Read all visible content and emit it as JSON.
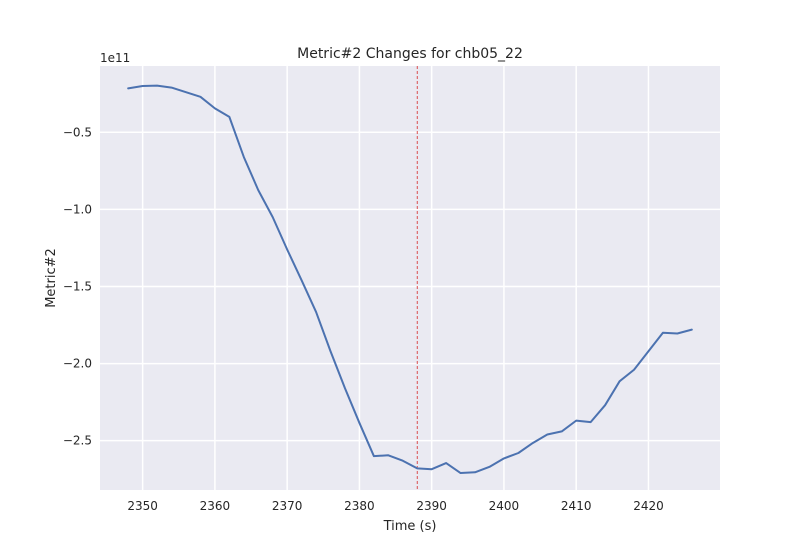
{
  "chart_data": {
    "type": "line",
    "title": "Metric#2 Changes for chb05_22",
    "xlabel": "Time (s)",
    "ylabel": "Metric#2",
    "y_scale_label": "1e11",
    "xlim": [
      2344.1,
      2429.9
    ],
    "ylim": [
      -282000000000.0,
      -7000000000.0
    ],
    "x_ticks": [
      2350,
      2360,
      2370,
      2380,
      2390,
      2400,
      2410,
      2420
    ],
    "x_tick_labels": [
      "2350",
      "2360",
      "2370",
      "2380",
      "2390",
      "2400",
      "2410",
      "2420"
    ],
    "y_ticks": [
      -50000000000.0,
      -100000000000.0,
      -150000000000.0,
      -200000000000.0,
      -250000000000.0
    ],
    "y_tick_labels": [
      "−0.5",
      "−1.0",
      "−1.5",
      "−2.0",
      "−2.5"
    ],
    "grid": true,
    "series": [
      {
        "color": "#4c72b0",
        "x": [
          2348,
          2350,
          2352,
          2354,
          2356,
          2358,
          2360,
          2362,
          2364,
          2366,
          2368,
          2370,
          2372,
          2374,
          2376,
          2378,
          2380,
          2382,
          2384,
          2386,
          2388,
          2390,
          2392,
          2394,
          2396,
          2398,
          2400,
          2402,
          2404,
          2406,
          2408,
          2410,
          2412,
          2414,
          2416,
          2418,
          2420,
          2422,
          2424,
          2426
        ],
        "y": [
          -21500000000.0,
          -20000000000.0,
          -19700000000.0,
          -21000000000.0,
          -24000000000.0,
          -27000000000.0,
          -34500000000.0,
          -40000000000.0,
          -66000000000.0,
          -87500000000.0,
          -105000000000.0,
          -126000000000.0,
          -146000000000.0,
          -166500000000.0,
          -192000000000.0,
          -216000000000.0,
          -238500000000.0,
          -260000000000.0,
          -259500000000.0,
          -263000000000.0,
          -268000000000.0,
          -268500000000.0,
          -264500000000.0,
          -271000000000.0,
          -270500000000.0,
          -267000000000.0,
          -261500000000.0,
          -258000000000.0,
          -251500000000.0,
          -246000000000.0,
          -244000000000.0,
          -237000000000.0,
          -238000000000.0,
          -227000000000.0,
          -211500000000.0,
          -204000000000.0,
          -192000000000.0,
          -180000000000.0,
          -180500000000.0,
          -178000000000.0
        ]
      }
    ],
    "reference_line": {
      "x": 2388,
      "color": "#d62728",
      "style": "dashed"
    }
  }
}
